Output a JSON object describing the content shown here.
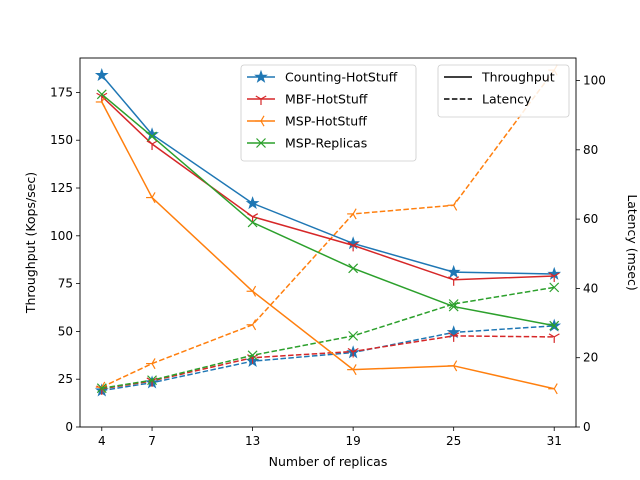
{
  "chart_data": {
    "type": "line",
    "xlabel": "Number of replicas",
    "ylabel_left": "Throughput (Kops/sec)",
    "ylabel_right": "Latency (msec)",
    "x": [
      4,
      7,
      13,
      19,
      25,
      31
    ],
    "x_ticks": [
      "4",
      "7",
      "13",
      "19",
      "25",
      "31"
    ],
    "xlim": [
      2.7,
      32.3
    ],
    "ylim_left": [
      0,
      193
    ],
    "ylim_right": [
      0,
      106.5
    ],
    "y_ticks_left": [
      "0",
      "25",
      "50",
      "75",
      "100",
      "125",
      "150",
      "175"
    ],
    "y_ticks_right": [
      "0",
      "20",
      "40",
      "60",
      "80",
      "100"
    ],
    "grid": false,
    "series": [
      {
        "name": "Counting-HotStuff",
        "color": "#1f77b4",
        "marker": "star",
        "throughput": [
          184,
          153,
          117,
          96,
          81,
          80
        ],
        "latency": [
          10.5,
          12.8,
          19,
          21.5,
          27.3,
          29.2
        ]
      },
      {
        "name": "MBF-HotStuff",
        "color": "#d62728",
        "marker": "tri_down",
        "throughput": [
          173,
          148,
          110,
          95,
          77,
          79
        ],
        "latency": [
          11,
          13.3,
          20,
          21.8,
          26.3,
          26
        ]
      },
      {
        "name": "MSP-HotStuff",
        "color": "#ff7f0e",
        "marker": "tri_left",
        "throughput": [
          170,
          120,
          71,
          30,
          32,
          20
        ],
        "latency": [
          11.5,
          18.3,
          29.5,
          61.5,
          64,
          103
        ]
      },
      {
        "name": "MSP-Replicas",
        "color": "#2ca02c",
        "marker": "x",
        "throughput": [
          174,
          152,
          107,
          83,
          63,
          53
        ],
        "latency": [
          11.2,
          13.5,
          20.7,
          26.3,
          35.5,
          40.3
        ]
      }
    ],
    "legend_series_placement": "top-center",
    "legend_style_placement": "top-right",
    "legend_style": [
      {
        "label": "Throughput",
        "dash": "solid"
      },
      {
        "label": "Latency",
        "dash": "dashed"
      }
    ]
  }
}
